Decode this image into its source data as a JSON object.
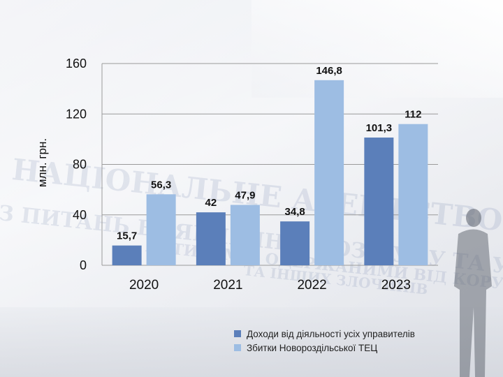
{
  "chart_data": {
    "type": "bar",
    "categories": [
      "2020",
      "2021",
      "2022",
      "2023"
    ],
    "series": [
      {
        "name": "Доходи від діяльності усіх управителів",
        "values": [
          15.7,
          42,
          34.8,
          101.3
        ],
        "labels": [
          "15,7",
          "42",
          "34,8",
          "101,3"
        ],
        "color": "#5b7fba"
      },
      {
        "name": "Збитки Новороздільської ТЕЦ",
        "values": [
          56.3,
          47.9,
          146.8,
          112
        ],
        "labels": [
          "56,3",
          "47,9",
          "146,8",
          "112"
        ],
        "color": "#9dbde3"
      }
    ],
    "ylabel": "млн. грн.",
    "ylim": [
      0,
      160
    ],
    "yticks": [
      0,
      40,
      80,
      120,
      160
    ],
    "grid": true,
    "legend": "bottom-right"
  },
  "background": {
    "watermark_lines": [
      "НАЦІОНАЛЬНЕ АГЕНТСТВО УКРАЇНИ",
      "З ПИТАНЬ ВИЯВЛЕННЯ, РОЗШУКУ ТА УПРАВЛІННЯ",
      "АКТИВАМИ, ОДЕРЖАНИМИ ВІД КОРУПЦІЙНИХ",
      "ТА ІНШИХ ЗЛОЧИНІВ"
    ]
  }
}
